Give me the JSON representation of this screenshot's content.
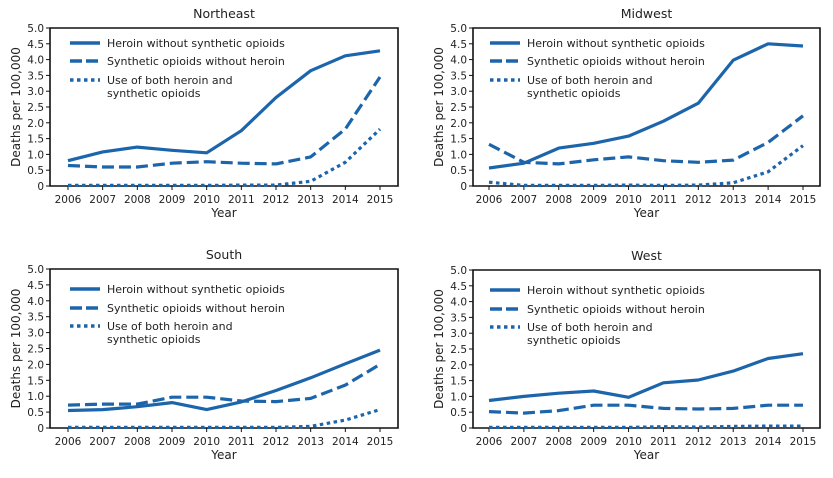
{
  "chart_data": [
    {
      "type": "line",
      "title": "Northeast",
      "xlabel": "Year",
      "ylabel": "Deaths per 100,000",
      "ylim": [
        0,
        5.0
      ],
      "yticks": [
        "0",
        "0.5",
        "1.0",
        "1.5",
        "2.0",
        "2.5",
        "3.0",
        "3.5",
        "4.0",
        "4.5",
        "5.0"
      ],
      "x": [
        "2006",
        "2007",
        "2008",
        "2009",
        "2010",
        "2011",
        "2012",
        "2013",
        "2014",
        "2015"
      ],
      "legend_position": "top-left",
      "series": [
        {
          "name": "Heroin without synthetic opioids",
          "style": "solid",
          "values": [
            0.8,
            1.08,
            1.23,
            1.13,
            1.05,
            1.75,
            2.8,
            3.65,
            4.12,
            4.28
          ]
        },
        {
          "name": "Synthetic opioids without heroin",
          "style": "dashed",
          "values": [
            0.65,
            0.6,
            0.6,
            0.72,
            0.77,
            0.72,
            0.7,
            0.92,
            1.8,
            3.45
          ]
        },
        {
          "name": "Use of both heroin and synthetic opioids",
          "name_lines": [
            "Use of both heroin and",
            "synthetic opioids"
          ],
          "style": "dotted",
          "values": [
            0.02,
            0.02,
            0.02,
            0.02,
            0.02,
            0.03,
            0.03,
            0.15,
            0.75,
            1.8
          ]
        }
      ]
    },
    {
      "type": "line",
      "title": "Midwest",
      "xlabel": "Year",
      "ylabel": "Deaths per 100,000",
      "ylim": [
        0,
        5.0
      ],
      "yticks": [
        "0",
        "0.5",
        "1.0",
        "1.5",
        "2.0",
        "2.5",
        "3.0",
        "3.5",
        "4.0",
        "4.5",
        "5.0"
      ],
      "x": [
        "2006",
        "2007",
        "2008",
        "2009",
        "2010",
        "2011",
        "2012",
        "2013",
        "2014",
        "2015"
      ],
      "legend_position": "top-left",
      "series": [
        {
          "name": "Heroin without synthetic opioids",
          "style": "solid",
          "values": [
            0.57,
            0.72,
            1.2,
            1.35,
            1.58,
            2.05,
            2.62,
            3.98,
            4.5,
            4.43
          ]
        },
        {
          "name": "Synthetic opioids without heroin",
          "style": "dashed",
          "values": [
            1.32,
            0.75,
            0.7,
            0.83,
            0.92,
            0.8,
            0.75,
            0.82,
            1.38,
            2.22
          ]
        },
        {
          "name": "Use of both heroin and synthetic opioids",
          "name_lines": [
            "Use of both heroin and",
            "synthetic opioids"
          ],
          "style": "dotted",
          "values": [
            0.12,
            0.02,
            0.02,
            0.02,
            0.03,
            0.02,
            0.03,
            0.1,
            0.45,
            1.28
          ]
        }
      ]
    },
    {
      "type": "line",
      "title": "South",
      "xlabel": "Year",
      "ylabel": "Deaths per 100,000",
      "ylim": [
        0,
        5.0
      ],
      "yticks": [
        "0",
        "0.5",
        "1.0",
        "1.5",
        "2.0",
        "2.5",
        "3.0",
        "3.5",
        "4.0",
        "4.5",
        "5.0"
      ],
      "x": [
        "2006",
        "2007",
        "2008",
        "2009",
        "2010",
        "2011",
        "2012",
        "2013",
        "2014",
        "2015"
      ],
      "legend_position": "top-left",
      "series": [
        {
          "name": "Heroin without synthetic opioids",
          "style": "solid",
          "values": [
            0.55,
            0.58,
            0.67,
            0.8,
            0.58,
            0.82,
            1.18,
            1.58,
            2.02,
            2.45
          ]
        },
        {
          "name": "Synthetic opioids without heroin",
          "style": "dashed",
          "values": [
            0.72,
            0.75,
            0.75,
            0.97,
            0.97,
            0.85,
            0.83,
            0.93,
            1.35,
            2.0
          ]
        },
        {
          "name": "Use of both heroin and synthetic opioids",
          "name_lines": [
            "Use of both heroin and",
            "synthetic opioids"
          ],
          "style": "dotted",
          "values": [
            0.02,
            0.02,
            0.02,
            0.02,
            0.02,
            0.02,
            0.02,
            0.05,
            0.25,
            0.58
          ]
        }
      ]
    },
    {
      "type": "line",
      "title": "West",
      "xlabel": "Year",
      "ylabel": "Deaths per 100,000",
      "ylim": [
        0,
        5.0
      ],
      "yticks": [
        "0",
        "0.5",
        "1.0",
        "1.5",
        "2.0",
        "2.5",
        "3.0",
        "3.5",
        "4.0",
        "4.5",
        "5.0"
      ],
      "x": [
        "2006",
        "2007",
        "2008",
        "2009",
        "2010",
        "2011",
        "2012",
        "2013",
        "2014",
        "2015"
      ],
      "legend_position": "top-left",
      "series": [
        {
          "name": "Heroin without synthetic opioids",
          "style": "solid",
          "values": [
            0.87,
            1.0,
            1.1,
            1.17,
            0.97,
            1.43,
            1.52,
            1.8,
            2.2,
            2.35
          ]
        },
        {
          "name": "Synthetic opioids without heroin",
          "style": "dashed",
          "values": [
            0.52,
            0.47,
            0.55,
            0.72,
            0.72,
            0.62,
            0.6,
            0.62,
            0.72,
            0.72
          ]
        },
        {
          "name": "Use of both heroin and synthetic opioids",
          "name_lines": [
            "Use of both heroin and",
            "synthetic opioids"
          ],
          "style": "dotted",
          "values": [
            0.02,
            0.02,
            0.02,
            0.02,
            0.02,
            0.04,
            0.03,
            0.05,
            0.06,
            0.06
          ]
        }
      ]
    }
  ],
  "colors": {
    "series": "#1d65ab",
    "axis": "#111111",
    "text": "#222222"
  }
}
